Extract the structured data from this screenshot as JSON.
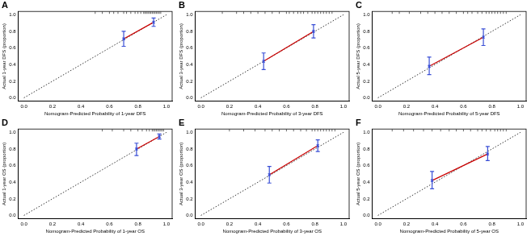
{
  "chart_data": [
    {
      "type": "line",
      "title": "A",
      "x_label": "Nomogram-Predicted Probability of 1-year DFS",
      "y_label": "Actual 1-year DFS (proportion)",
      "xlim": [
        -0.04,
        1.04
      ],
      "ylim": [
        -0.04,
        1.04
      ],
      "xticks": [
        {
          "value": 0,
          "label": "0.0"
        },
        {
          "value": 0.2,
          "label": "0.2"
        },
        {
          "value": 0.4,
          "label": "0.4"
        },
        {
          "value": 0.6,
          "label": "0.6"
        },
        {
          "value": 0.8,
          "label": "0.8"
        },
        {
          "value": 1,
          "label": "1.0"
        }
      ],
      "yticks": [
        {
          "value": 0,
          "label": "0.0"
        },
        {
          "value": 0.2,
          "label": "0.2"
        },
        {
          "value": 0.4,
          "label": "0.4"
        },
        {
          "value": 0.6,
          "label": "0.6"
        },
        {
          "value": 0.8,
          "label": "0.8"
        },
        {
          "value": 1,
          "label": "1.0"
        }
      ],
      "grid": false,
      "series": [
        {
          "x": [
            0,
            1
          ],
          "values": [
            0,
            1
          ],
          "color": "#000000",
          "line_style": "dotted",
          "marker": "none"
        },
        {
          "x": [
            0.7,
            0.91
          ],
          "values": [
            0.71,
            0.91
          ],
          "color": "#cc0000",
          "line_style": "solid",
          "marker": "none",
          "error_low": [
            0.62,
            0.86
          ],
          "error_high": [
            0.8,
            0.96
          ]
        }
      ],
      "rug": [
        0.5,
        0.55,
        0.6,
        0.63,
        0.66,
        0.7,
        0.72,
        0.75,
        0.78,
        0.8,
        0.82,
        0.84,
        0.85,
        0.86,
        0.87,
        0.88,
        0.89,
        0.9,
        0.91,
        0.92,
        0.93,
        0.94,
        0.95,
        0.96
      ]
    },
    {
      "type": "line",
      "title": "B",
      "x_label": "Nomogram-Predicted Probability of 3-year DFS",
      "y_label": "Actual 3-year DFS (proportion)",
      "xlim": [
        -0.04,
        1.04
      ],
      "ylim": [
        -0.04,
        1.04
      ],
      "xticks": [
        {
          "value": 0,
          "label": "0.0"
        },
        {
          "value": 0.2,
          "label": "0.2"
        },
        {
          "value": 0.4,
          "label": "0.4"
        },
        {
          "value": 0.6,
          "label": "0.6"
        },
        {
          "value": 0.8,
          "label": "0.8"
        },
        {
          "value": 1,
          "label": "1.0"
        }
      ],
      "yticks": [
        {
          "value": 0,
          "label": "0.0"
        },
        {
          "value": 0.2,
          "label": "0.2"
        },
        {
          "value": 0.4,
          "label": "0.4"
        },
        {
          "value": 0.6,
          "label": "0.6"
        },
        {
          "value": 0.8,
          "label": "0.8"
        },
        {
          "value": 1,
          "label": "1.0"
        }
      ],
      "grid": false,
      "series": [
        {
          "x": [
            0,
            1
          ],
          "values": [
            0,
            1
          ],
          "color": "#000000",
          "line_style": "dotted",
          "marker": "none"
        },
        {
          "x": [
            0.44,
            0.79
          ],
          "values": [
            0.44,
            0.8
          ],
          "color": "#cc0000",
          "line_style": "solid",
          "marker": "none",
          "error_low": [
            0.34,
            0.72
          ],
          "error_high": [
            0.54,
            0.88
          ]
        }
      ],
      "rug": [
        0.15,
        0.25,
        0.3,
        0.35,
        0.4,
        0.45,
        0.5,
        0.55,
        0.6,
        0.62,
        0.65,
        0.68,
        0.7,
        0.72,
        0.75,
        0.78,
        0.8,
        0.82,
        0.84,
        0.86,
        0.88,
        0.9,
        0.92
      ]
    },
    {
      "type": "line",
      "title": "C",
      "x_label": "Nomogram-Predicted Probability of 5-year DFS",
      "y_label": "Actual 5-year DFS (proportion)",
      "xlim": [
        -0.04,
        1.04
      ],
      "ylim": [
        -0.04,
        1.04
      ],
      "xticks": [
        {
          "value": 0,
          "label": "0.0"
        },
        {
          "value": 0.2,
          "label": "0.2"
        },
        {
          "value": 0.4,
          "label": "0.4"
        },
        {
          "value": 0.6,
          "label": "0.6"
        },
        {
          "value": 0.8,
          "label": "0.8"
        },
        {
          "value": 1,
          "label": "1.0"
        }
      ],
      "yticks": [
        {
          "value": 0,
          "label": "0.0"
        },
        {
          "value": 0.2,
          "label": "0.2"
        },
        {
          "value": 0.4,
          "label": "0.4"
        },
        {
          "value": 0.6,
          "label": "0.6"
        },
        {
          "value": 0.8,
          "label": "0.8"
        },
        {
          "value": 1,
          "label": "1.0"
        }
      ],
      "grid": false,
      "series": [
        {
          "x": [
            0,
            1
          ],
          "values": [
            0,
            1
          ],
          "color": "#000000",
          "line_style": "dotted",
          "marker": "none"
        },
        {
          "x": [
            0.36,
            0.74
          ],
          "values": [
            0.38,
            0.73
          ],
          "color": "#cc0000",
          "line_style": "solid",
          "marker": "none",
          "error_low": [
            0.28,
            0.63
          ],
          "error_high": [
            0.49,
            0.83
          ]
        }
      ],
      "rug": [
        0.1,
        0.15,
        0.22,
        0.3,
        0.35,
        0.4,
        0.45,
        0.5,
        0.55,
        0.6,
        0.63,
        0.66,
        0.7,
        0.73,
        0.76,
        0.78,
        0.8,
        0.82,
        0.84,
        0.86,
        0.88,
        0.9
      ]
    },
    {
      "type": "line",
      "title": "D",
      "x_label": "Nomogram-Predicted Probability of 1-year OS",
      "y_label": "Actual 1-year OS (proportion)",
      "xlim": [
        -0.04,
        1.04
      ],
      "ylim": [
        -0.04,
        1.04
      ],
      "xticks": [
        {
          "value": 0,
          "label": "0.0"
        },
        {
          "value": 0.2,
          "label": "0.2"
        },
        {
          "value": 0.4,
          "label": "0.4"
        },
        {
          "value": 0.6,
          "label": "0.6"
        },
        {
          "value": 0.8,
          "label": "0.8"
        },
        {
          "value": 1,
          "label": "1.0"
        }
      ],
      "yticks": [
        {
          "value": 0,
          "label": "0.0"
        },
        {
          "value": 0.2,
          "label": "0.2"
        },
        {
          "value": 0.4,
          "label": "0.4"
        },
        {
          "value": 0.6,
          "label": "0.6"
        },
        {
          "value": 0.8,
          "label": "0.8"
        },
        {
          "value": 1,
          "label": "1.0"
        }
      ],
      "grid": false,
      "series": [
        {
          "x": [
            0,
            1
          ],
          "values": [
            0,
            1
          ],
          "color": "#000000",
          "line_style": "dotted",
          "marker": "none"
        },
        {
          "x": [
            0.79,
            0.95
          ],
          "values": [
            0.8,
            0.95
          ],
          "color": "#cc0000",
          "line_style": "solid",
          "marker": "none",
          "error_low": [
            0.72,
            0.92
          ],
          "error_high": [
            0.87,
            0.98
          ]
        }
      ],
      "rug": [
        0.55,
        0.62,
        0.7,
        0.75,
        0.8,
        0.83,
        0.86,
        0.88,
        0.9,
        0.91,
        0.92,
        0.93,
        0.94,
        0.95,
        0.96,
        0.97,
        0.98
      ]
    },
    {
      "type": "line",
      "title": "E",
      "x_label": "Nomogram-Predicted Probability of 3-year OS",
      "y_label": "Actual 3-year OS (proportion)",
      "xlim": [
        -0.04,
        1.04
      ],
      "ylim": [
        -0.04,
        1.04
      ],
      "xticks": [
        {
          "value": 0,
          "label": "0.0"
        },
        {
          "value": 0.2,
          "label": "0.2"
        },
        {
          "value": 0.4,
          "label": "0.4"
        },
        {
          "value": 0.6,
          "label": "0.6"
        },
        {
          "value": 0.8,
          "label": "0.8"
        },
        {
          "value": 1,
          "label": "1.0"
        }
      ],
      "yticks": [
        {
          "value": 0,
          "label": "0.0"
        },
        {
          "value": 0.2,
          "label": "0.2"
        },
        {
          "value": 0.4,
          "label": "0.4"
        },
        {
          "value": 0.6,
          "label": "0.6"
        },
        {
          "value": 0.8,
          "label": "0.8"
        },
        {
          "value": 1,
          "label": "1.0"
        }
      ],
      "grid": false,
      "series": [
        {
          "x": [
            0,
            1
          ],
          "values": [
            0,
            1
          ],
          "color": "#000000",
          "line_style": "dotted",
          "marker": "none"
        },
        {
          "x": [
            0.48,
            0.82
          ],
          "values": [
            0.49,
            0.84
          ],
          "color": "#cc0000",
          "line_style": "solid",
          "marker": "none",
          "error_low": [
            0.39,
            0.77
          ],
          "error_high": [
            0.59,
            0.91
          ]
        }
      ],
      "rug": [
        0.2,
        0.3,
        0.38,
        0.45,
        0.5,
        0.55,
        0.6,
        0.65,
        0.7,
        0.74,
        0.78,
        0.8,
        0.82,
        0.84,
        0.86,
        0.88,
        0.9,
        0.92,
        0.94
      ]
    },
    {
      "type": "line",
      "title": "F",
      "x_label": "Nomogram-Predicted Probability of 5-year OS",
      "y_label": "Actual 5-year OS (proportion)",
      "xlim": [
        -0.04,
        1.04
      ],
      "ylim": [
        -0.04,
        1.04
      ],
      "xticks": [
        {
          "value": 0,
          "label": "0.0"
        },
        {
          "value": 0.2,
          "label": "0.2"
        },
        {
          "value": 0.4,
          "label": "0.4"
        },
        {
          "value": 0.6,
          "label": "0.6"
        },
        {
          "value": 0.8,
          "label": "0.8"
        },
        {
          "value": 1,
          "label": "1.0"
        }
      ],
      "yticks": [
        {
          "value": 0,
          "label": "0.0"
        },
        {
          "value": 0.2,
          "label": "0.2"
        },
        {
          "value": 0.4,
          "label": "0.4"
        },
        {
          "value": 0.6,
          "label": "0.6"
        },
        {
          "value": 0.8,
          "label": "0.8"
        },
        {
          "value": 1,
          "label": "1.0"
        }
      ],
      "grid": false,
      "series": [
        {
          "x": [
            0,
            1
          ],
          "values": [
            0,
            1
          ],
          "color": "#000000",
          "line_style": "dotted",
          "marker": "none"
        },
        {
          "x": [
            0.38,
            0.77
          ],
          "values": [
            0.42,
            0.74
          ],
          "color": "#cc0000",
          "line_style": "solid",
          "marker": "none",
          "error_low": [
            0.32,
            0.66
          ],
          "error_high": [
            0.53,
            0.83
          ]
        }
      ],
      "rug": [
        0.1,
        0.18,
        0.25,
        0.32,
        0.38,
        0.44,
        0.5,
        0.55,
        0.6,
        0.65,
        0.7,
        0.73,
        0.76,
        0.79,
        0.82,
        0.84,
        0.86,
        0.88,
        0.9
      ]
    }
  ]
}
